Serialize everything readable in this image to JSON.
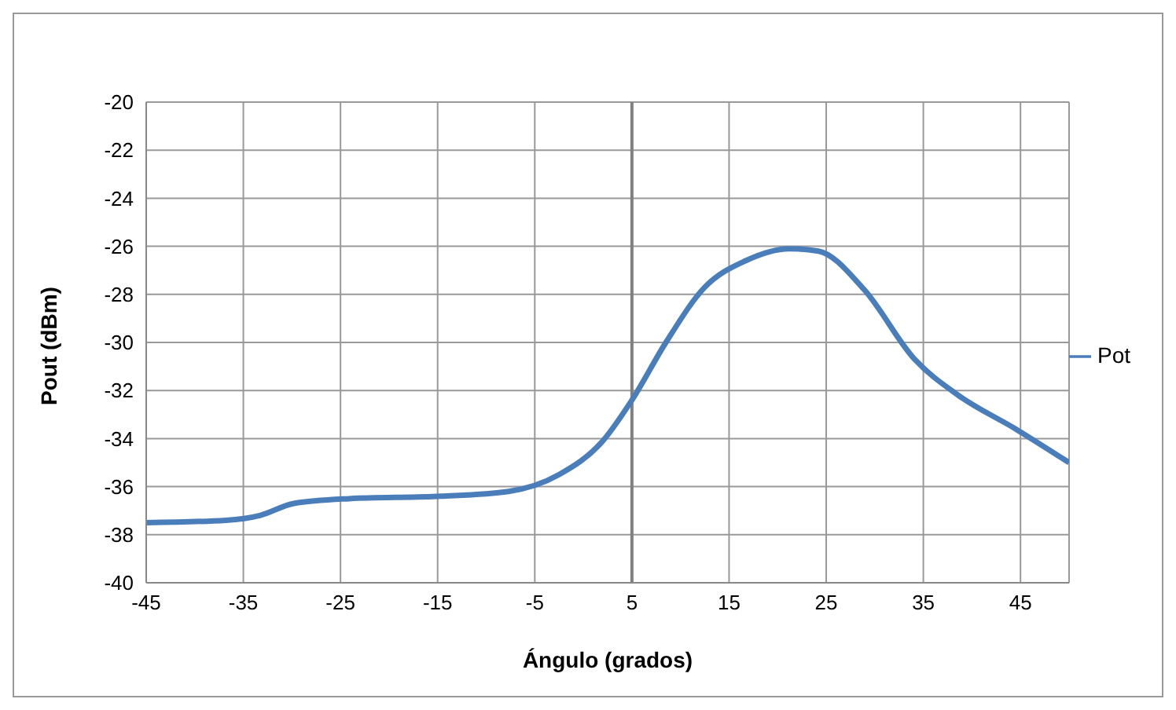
{
  "chart_data": {
    "type": "line",
    "xlabel": "Ángulo (grados)",
    "ylabel": "Pout (dBm)",
    "xlim": [
      -45,
      50
    ],
    "xticks": [
      -45,
      -35,
      -25,
      -15,
      -5,
      5,
      15,
      25,
      35,
      45
    ],
    "ylim": [
      -40,
      -20
    ],
    "yticks": [
      -40,
      -38,
      -36,
      -34,
      -32,
      -30,
      -28,
      -26,
      -24,
      -22,
      -20
    ],
    "grid": true,
    "legend": "right",
    "marker": "none",
    "line_style": "solid",
    "ref_lines": [
      {
        "axis": "x",
        "value": 5,
        "color": "#808080"
      }
    ],
    "x": [
      -45,
      -36.8,
      -33.3,
      -29.8,
      -24.1,
      -14.7,
      -7.7,
      -2.5,
      2,
      5,
      8.5,
      12.5,
      16.7,
      21.2,
      24.2,
      28.9,
      34.1,
      38.6,
      44.5,
      50
    ],
    "series": [
      {
        "name": "Pot",
        "color": "#4a7ebb",
        "values": [
          -37.5,
          -37.4,
          -37.2,
          -36.7,
          -36.5,
          -36.4,
          -36.2,
          -35.5,
          -34.1,
          -32.4,
          -30,
          -27.7,
          -26.6,
          -26.1,
          -26.2,
          -27.8,
          -30.7,
          -32.2,
          -33.6,
          -35
        ]
      }
    ]
  }
}
